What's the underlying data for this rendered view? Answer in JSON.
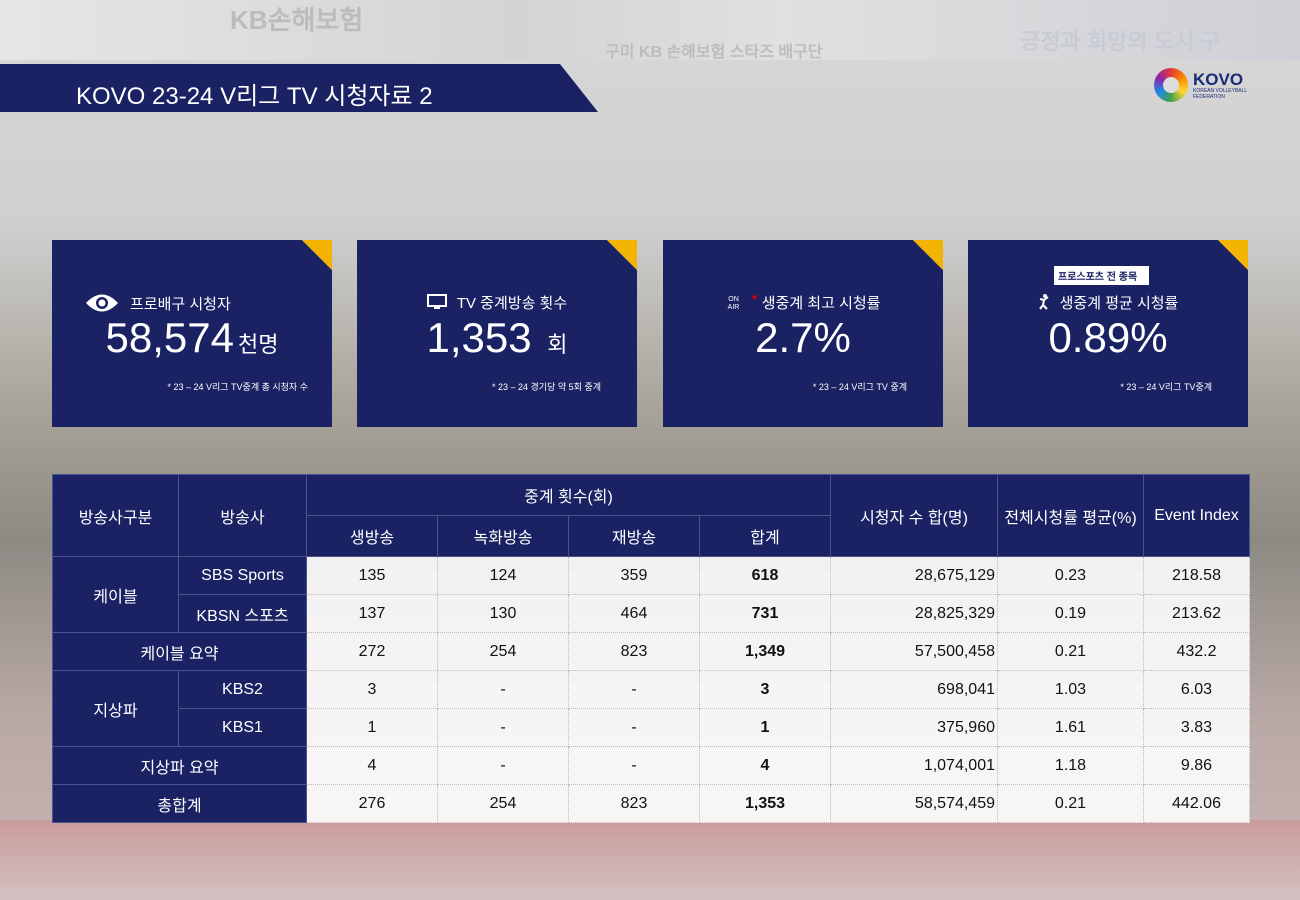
{
  "title": "KOVO 23-24 V리그 TV 시청자료 2",
  "logo": {
    "name": "KOVO",
    "sub1": "KOREAN VOLLEYBALL",
    "sub2": "FEDERATION"
  },
  "bg_text": {
    "a": "KB손해보험",
    "b": "구미 KB 손해보험 스타즈 배구단",
    "c": "긍정과 희망의 도시 구"
  },
  "cards": [
    {
      "icon": "eye-icon",
      "label": "프로배구 시청자",
      "value": "58,574",
      "unit": "천명",
      "note": "* 23 – 24 V리그 TV중계 총 시청자 수"
    },
    {
      "icon": "tv-icon",
      "label": "TV 중계방송 횟수",
      "value": "1,353",
      "unit": "회",
      "note": "* 23 – 24 경기당 약 5회 중계"
    },
    {
      "icon": "on-air-icon",
      "icon_text": "ON AIR",
      "label": "생중계 최고 시청률",
      "value": "2.7%",
      "unit": "",
      "note": "* 23 – 24 V리그 TV 중계"
    },
    {
      "icon": "athlete-icon",
      "badge": "프로스포츠 전 종목",
      "label": "생중계 평균 시청률",
      "value": "0.89%",
      "unit": "",
      "note": "* 23 – 24 V리그 TV중계"
    }
  ],
  "table": {
    "headers": {
      "type": "방송사구분",
      "broadcaster": "방송사",
      "count": "중계 횟수(회)",
      "live": "생방송",
      "recorded": "녹화방송",
      "rerun": "재방송",
      "total": "합계",
      "viewers": "시청자 수 합(명)",
      "rating": "전체시청률 평균(%)",
      "index": "Event Index"
    },
    "groups": {
      "cable": "케이블",
      "terrestrial": "지상파"
    },
    "rows": [
      {
        "b": "SBS Sports",
        "live": "135",
        "rec": "124",
        "rerun": "359",
        "total": "618",
        "viewers": "28,675,129",
        "rating": "0.23",
        "index": "218.58"
      },
      {
        "b": "KBSN 스포츠",
        "live": "137",
        "rec": "130",
        "rerun": "464",
        "total": "731",
        "viewers": "28,825,329",
        "rating": "0.19",
        "index": "213.62"
      },
      {
        "b": "케이블 요약",
        "live": "272",
        "rec": "254",
        "rerun": "823",
        "total": "1,349",
        "viewers": "57,500,458",
        "rating": "0.21",
        "index": "432.2"
      },
      {
        "b": "KBS2",
        "live": "3",
        "rec": "-",
        "rerun": "-",
        "total": "3",
        "viewers": "698,041",
        "rating": "1.03",
        "index": "6.03"
      },
      {
        "b": "KBS1",
        "live": "1",
        "rec": "-",
        "rerun": "-",
        "total": "1",
        "viewers": "375,960",
        "rating": "1.61",
        "index": "3.83"
      },
      {
        "b": "지상파 요약",
        "live": "4",
        "rec": "-",
        "rerun": "-",
        "total": "4",
        "viewers": "1,074,001",
        "rating": "1.18",
        "index": "9.86"
      },
      {
        "b": "총합계",
        "live": "276",
        "rec": "254",
        "rerun": "823",
        "total": "1,353",
        "viewers": "58,574,459",
        "rating": "0.21",
        "index": "442.06"
      }
    ]
  },
  "colors": {
    "navy": "#1a2264",
    "accent": "#f2b400"
  }
}
